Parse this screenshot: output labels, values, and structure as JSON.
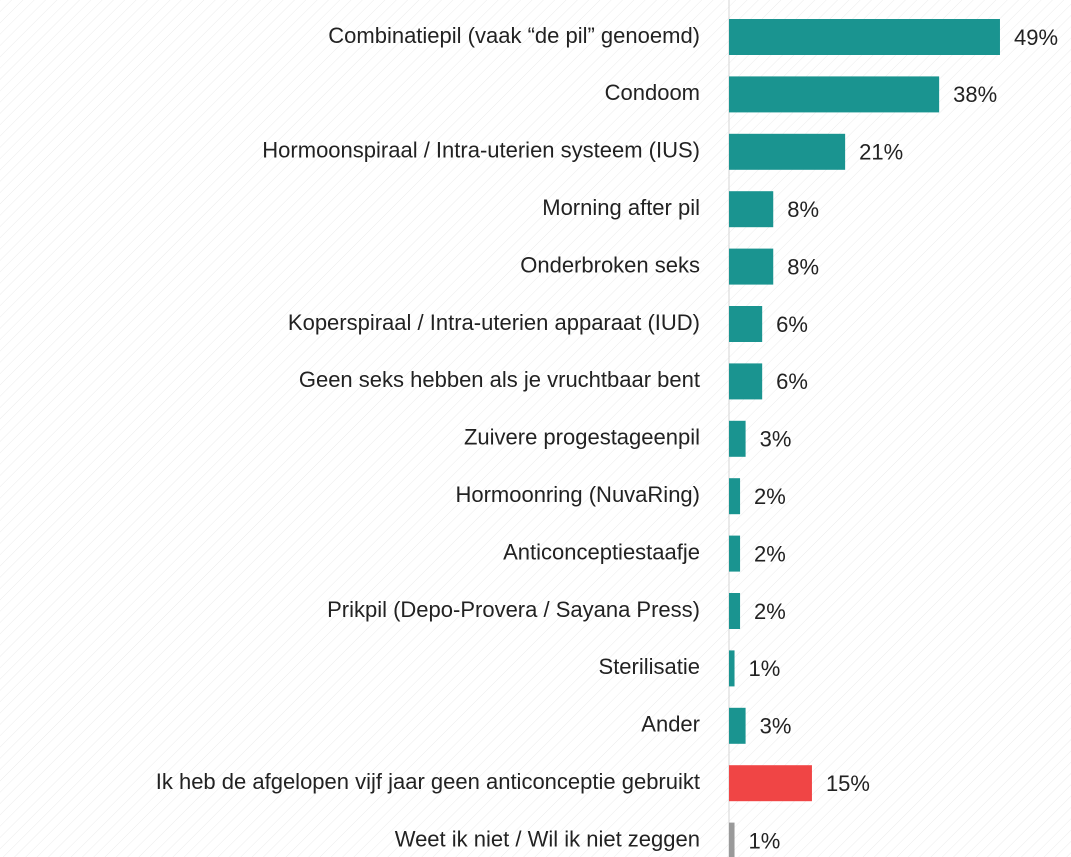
{
  "chart_data": {
    "type": "barh",
    "categories": [
      "Combinatiepil (vaak “de pil” genoemd)",
      "Condoom",
      "Hormoonspiraal / Intra-uterien systeem (IUS)",
      "Morning after pil",
      "Onderbroken seks",
      "Koperspiraal / Intra-uterien apparaat (IUD)",
      "Geen seks hebben als je vruchtbaar bent ",
      "Zuivere progestageenpil",
      "Hormoonring (NuvaRing)",
      "Anticonceptiestaafje",
      "Prikpil (Depo-Provera / Sayana Press)",
      "Sterilisatie",
      "Ander",
      "Ik heb de afgelopen vijf jaar geen anticonceptie gebruikt",
      "Weet ik niet / Wil ik niet zeggen"
    ],
    "values": [
      49,
      38,
      21,
      8,
      8,
      6,
      6,
      3,
      2,
      2,
      2,
      1,
      3,
      15,
      1
    ],
    "value_labels": [
      "49%",
      "38%",
      "21%",
      "8%",
      "8%",
      "6%",
      "6%",
      "3%",
      "2%",
      "2%",
      "2%",
      "1%",
      "3%",
      "15%",
      "1%"
    ],
    "colors": [
      "#1a9490",
      "#1a9490",
      "#1a9490",
      "#1a9490",
      "#1a9490",
      "#1a9490",
      "#1a9490",
      "#1a9490",
      "#1a9490",
      "#1a9490",
      "#1a9490",
      "#1a9490",
      "#1a9490",
      "#f04545",
      "#9a9a9a"
    ]
  }
}
